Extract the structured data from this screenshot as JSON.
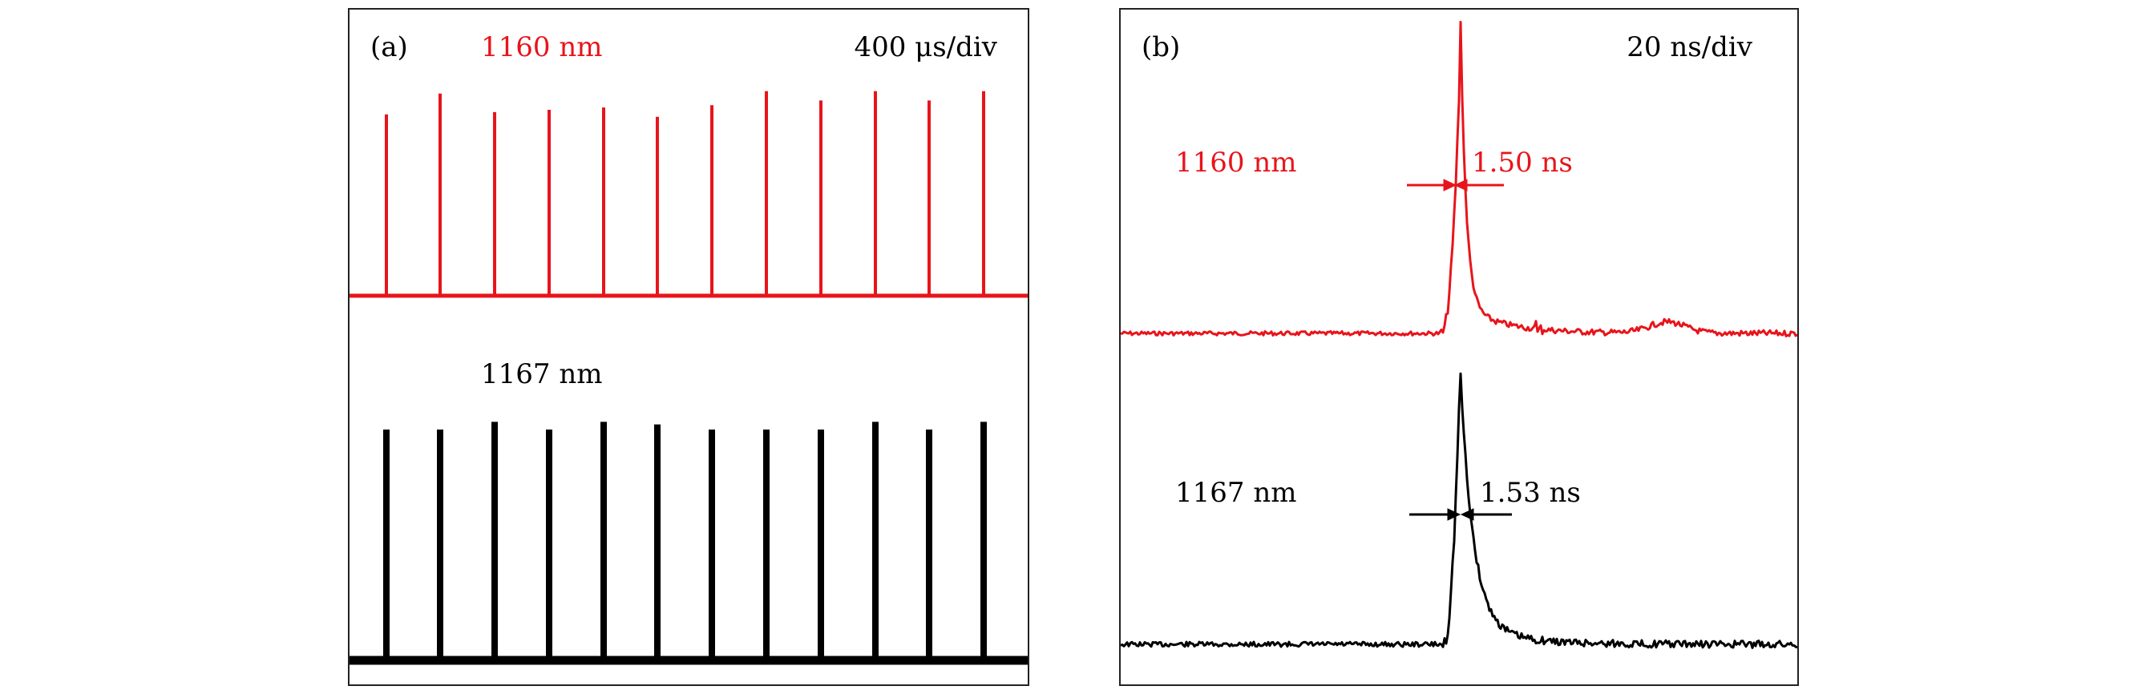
{
  "colors": {
    "red": "#e8141b",
    "black": "#000000"
  },
  "chart_data": [
    {
      "type": "line",
      "panel_label": "(a)",
      "timebase": "400 μs/div",
      "series": [
        {
          "name": "1160 nm",
          "color": "#e8141b",
          "pulse_heights": [
            0.78,
            0.87,
            0.79,
            0.8,
            0.81,
            0.77,
            0.82,
            0.88,
            0.84,
            0.88,
            0.84,
            0.88
          ]
        },
        {
          "name": "1167 nm",
          "color": "#000000",
          "pulse_heights": [
            0.9,
            0.9,
            0.93,
            0.9,
            0.93,
            0.92,
            0.9,
            0.9,
            0.9,
            0.93,
            0.9,
            0.93
          ]
        }
      ]
    },
    {
      "type": "line",
      "panel_label": "(b)",
      "timebase": "20 ns/div",
      "series": [
        {
          "name": "1160 nm",
          "color": "#e8141b",
          "pulse_width": "1.50 ns"
        },
        {
          "name": "1167 nm",
          "color": "#000000",
          "pulse_width": "1.53 ns"
        }
      ]
    }
  ]
}
